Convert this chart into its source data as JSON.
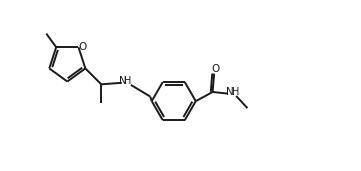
{
  "bg_color": "#ffffff",
  "line_color": "#1a1a1a",
  "line_width": 1.4,
  "figsize": [
    3.61,
    1.71
  ],
  "dpi": 100,
  "xlim": [
    0,
    10.5
  ],
  "ylim": [
    -0.5,
    5.0
  ]
}
